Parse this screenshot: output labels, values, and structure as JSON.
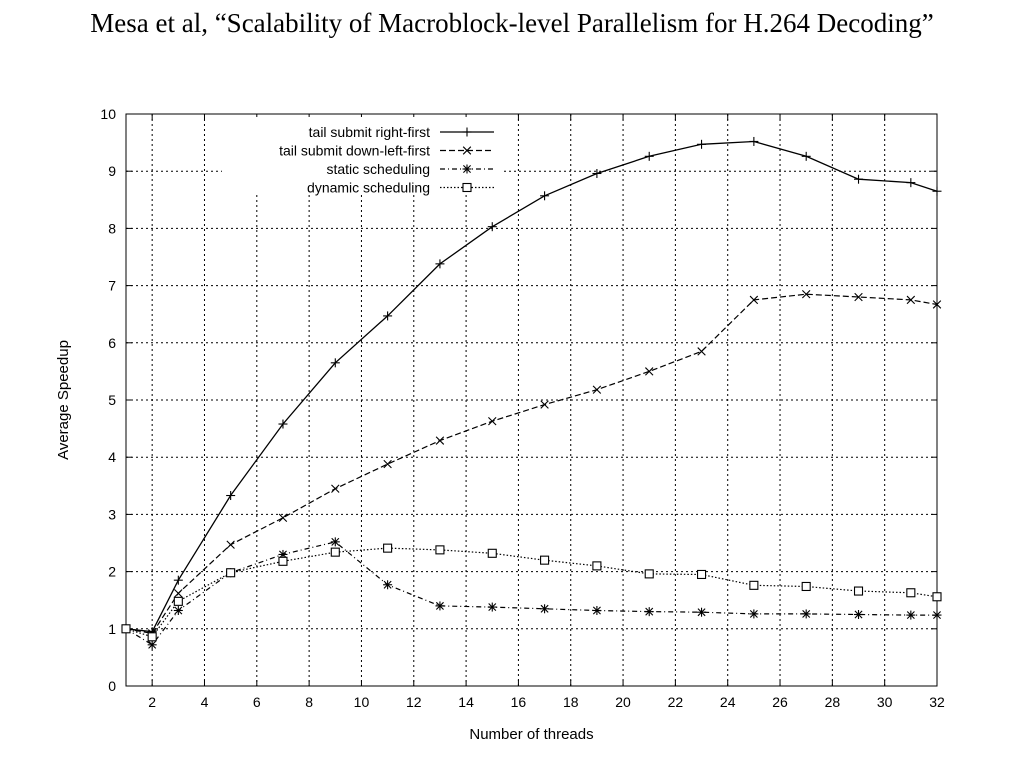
{
  "slide": {
    "title": "Mesa et al, “Scalability of Macroblock-level Parallelism for H.264 Decoding”"
  },
  "chart_data": {
    "type": "line",
    "xlabel": "Number of threads",
    "ylabel": "Average Speedup",
    "xlim": [
      1,
      32
    ],
    "ylim": [
      0,
      10
    ],
    "xticks": [
      2,
      4,
      6,
      8,
      10,
      12,
      14,
      16,
      18,
      20,
      22,
      24,
      26,
      28,
      30,
      32
    ],
    "yticks": [
      0,
      1,
      2,
      3,
      4,
      5,
      6,
      7,
      8,
      9,
      10
    ],
    "grid": true,
    "legend_position": "top-left",
    "series": [
      {
        "name": "tail submit right-first",
        "line_style": "solid",
        "marker": "plus",
        "x": [
          1,
          2,
          3,
          5,
          7,
          9,
          11,
          13,
          15,
          17,
          19,
          21,
          23,
          25,
          27,
          29,
          31,
          32
        ],
        "values": [
          1.0,
          0.95,
          1.85,
          3.33,
          4.58,
          5.65,
          6.47,
          7.38,
          8.03,
          8.57,
          8.96,
          9.26,
          9.47,
          9.52,
          9.26,
          8.86,
          8.8,
          8.65
        ]
      },
      {
        "name": "tail submit down-left-first",
        "line_style": "dashed",
        "marker": "x",
        "x": [
          1,
          2,
          3,
          5,
          7,
          9,
          11,
          13,
          15,
          17,
          19,
          21,
          23,
          25,
          27,
          29,
          31,
          32
        ],
        "values": [
          1.0,
          0.92,
          1.62,
          2.47,
          2.94,
          3.45,
          3.88,
          4.29,
          4.63,
          4.92,
          5.18,
          5.5,
          5.85,
          6.75,
          6.85,
          6.8,
          6.75,
          6.67
        ]
      },
      {
        "name": "static scheduling",
        "line_style": "dash-dot",
        "marker": "star",
        "x": [
          1,
          2,
          3,
          5,
          7,
          9,
          11,
          13,
          15,
          17,
          19,
          21,
          23,
          25,
          27,
          29,
          31,
          32
        ],
        "values": [
          1.0,
          0.72,
          1.32,
          1.98,
          2.3,
          2.52,
          1.77,
          1.4,
          1.38,
          1.35,
          1.32,
          1.3,
          1.29,
          1.26,
          1.26,
          1.25,
          1.24,
          1.24
        ]
      },
      {
        "name": "dynamic scheduling",
        "line_style": "dotted",
        "marker": "square",
        "x": [
          1,
          2,
          3,
          5,
          7,
          9,
          11,
          13,
          15,
          17,
          19,
          21,
          23,
          25,
          27,
          29,
          31,
          32
        ],
        "values": [
          1.0,
          0.86,
          1.48,
          1.98,
          2.18,
          2.34,
          2.41,
          2.38,
          2.32,
          2.2,
          2.1,
          1.96,
          1.95,
          1.76,
          1.74,
          1.66,
          1.63,
          1.56
        ]
      }
    ]
  }
}
